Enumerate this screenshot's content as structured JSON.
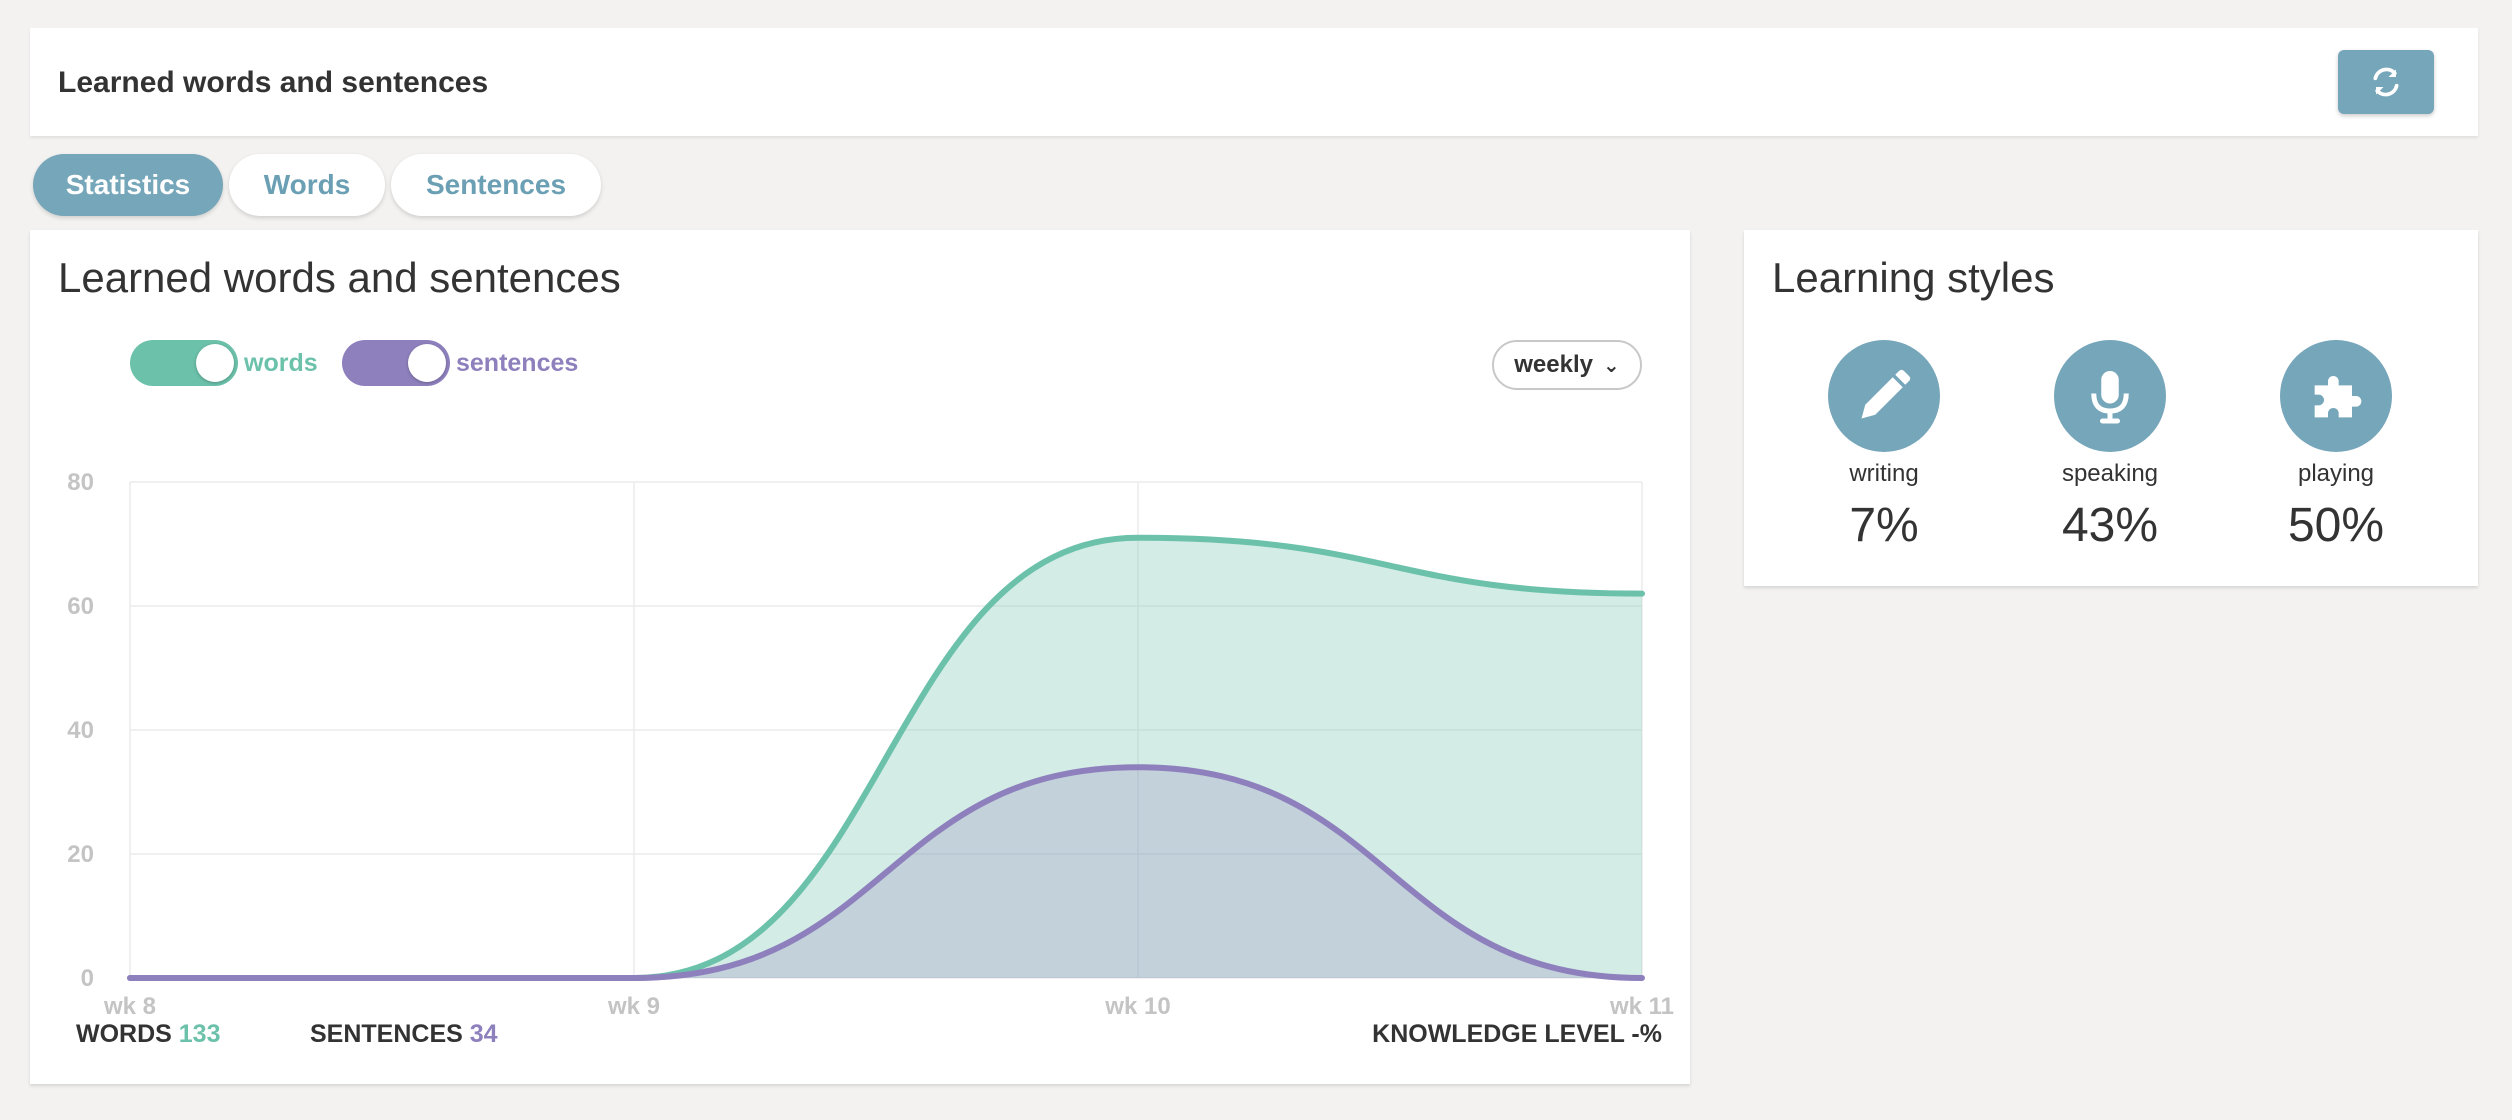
{
  "header": {
    "title": "Learned words and sentences",
    "refresh_icon": "refresh-icon"
  },
  "tabs": [
    {
      "label": "Statistics",
      "active": true
    },
    {
      "label": "Words",
      "active": false
    },
    {
      "label": "Sentences",
      "active": false
    }
  ],
  "chart_card": {
    "title": "Learned words and sentences",
    "toggles": [
      {
        "label": "words",
        "on": true,
        "color": "#6cc1aa"
      },
      {
        "label": "sentences",
        "on": true,
        "color": "#8e80bd"
      }
    ],
    "period_select": {
      "value": "weekly"
    },
    "footer": {
      "words_label": "WORDS",
      "words_value": "133",
      "sentences_label": "SENTENCES",
      "sentences_value": "34",
      "knowledge_label": "KNOWLEDGE LEVEL -%"
    }
  },
  "chart_data": {
    "type": "area",
    "categories": [
      "wk 8",
      "wk 9",
      "wk 10",
      "wk 11"
    ],
    "series": [
      {
        "name": "words",
        "values": [
          0,
          0,
          71,
          62
        ],
        "color": "#6cc1aa"
      },
      {
        "name": "sentences",
        "values": [
          0,
          0,
          34,
          0
        ],
        "color": "#8e80bd"
      }
    ],
    "yticks": [
      0,
      20,
      40,
      60,
      80
    ],
    "ylim": [
      0,
      80
    ],
    "grid": true,
    "title": "",
    "xlabel": "",
    "ylabel": ""
  },
  "learning_styles": {
    "title": "Learning styles",
    "items": [
      {
        "label": "writing",
        "value": "7%",
        "icon": "pencil-icon"
      },
      {
        "label": "speaking",
        "value": "43%",
        "icon": "microphone-icon"
      },
      {
        "label": "playing",
        "value": "50%",
        "icon": "puzzle-icon"
      }
    ]
  },
  "colors": {
    "accent": "#76a6b9",
    "words": "#6cc1aa",
    "sentences": "#8e80bd",
    "background": "#f3f2f0"
  }
}
